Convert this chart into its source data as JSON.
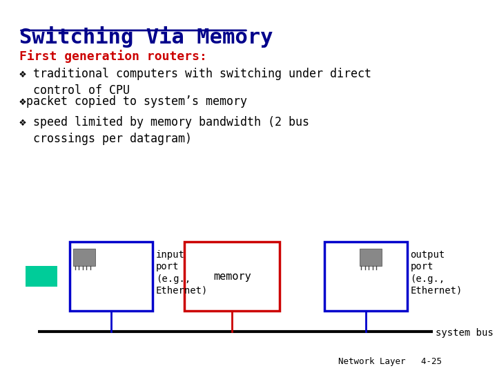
{
  "title": "Switching Via Memory",
  "title_color": "#00008B",
  "title_underline": true,
  "bg_color": "#FFFFFF",
  "subtitle": "First generation routers:",
  "subtitle_color": "#CC0000",
  "bullets": [
    "❖ traditional computers with switching under direct\n  control of CPU",
    "❖packet copied to system’s memory",
    "❖ speed limited by memory bandwidth (2 bus\n  crossings per datagram)"
  ],
  "bullet_color": "#000000",
  "diagram": {
    "input_box_color": "#0000CC",
    "memory_box_color": "#CC0000",
    "output_box_color": "#0000CC",
    "bus_color": "#000000",
    "connector_color": "#0000CC",
    "memory_connector_color": "#CC0000",
    "green_rect_color": "#00CC99",
    "input_label": "input\nport\n(e.g.,\nEthernet)",
    "memory_label": "memory",
    "output_label": "output\nport\n(e.g.,\nEthernet)",
    "system_bus_label": "system bus"
  },
  "footer": "Network Layer   4-25",
  "footer_color": "#000000",
  "font_family": "monospace"
}
